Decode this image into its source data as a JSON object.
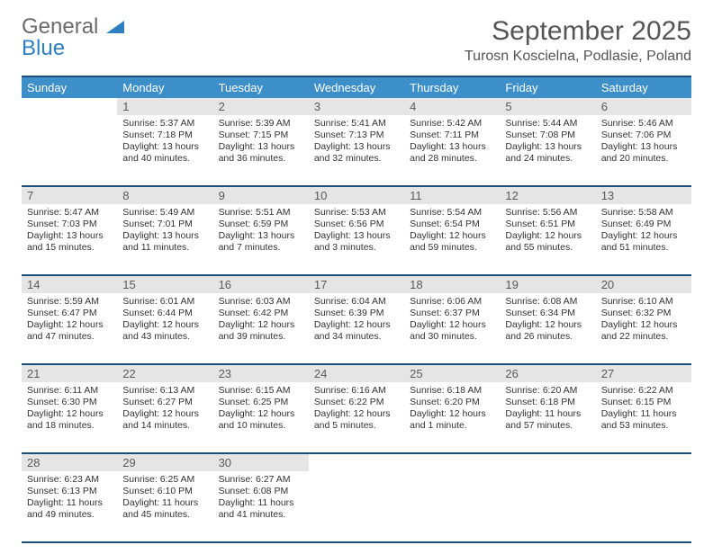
{
  "brand": {
    "part1": "General",
    "part2": "Blue"
  },
  "title": "September 2025",
  "location": "Turosn Koscielna, Podlasie, Poland",
  "colors": {
    "header_bar": "#3d8fc9",
    "rule": "#1b4f7a",
    "daynum_bg": "#e5e5e5",
    "text": "#333333",
    "brand_gray": "#6b6b6b",
    "brand_blue": "#2f7fc3"
  },
  "day_labels": [
    "Sunday",
    "Monday",
    "Tuesday",
    "Wednesday",
    "Thursday",
    "Friday",
    "Saturday"
  ],
  "weeks": [
    {
      "nums": [
        "",
        "1",
        "2",
        "3",
        "4",
        "5",
        "6"
      ],
      "cells": [
        {
          "sunrise": "",
          "sunset": "",
          "daylight": ""
        },
        {
          "sunrise": "Sunrise: 5:37 AM",
          "sunset": "Sunset: 7:18 PM",
          "daylight": "Daylight: 13 hours and 40 minutes."
        },
        {
          "sunrise": "Sunrise: 5:39 AM",
          "sunset": "Sunset: 7:15 PM",
          "daylight": "Daylight: 13 hours and 36 minutes."
        },
        {
          "sunrise": "Sunrise: 5:41 AM",
          "sunset": "Sunset: 7:13 PM",
          "daylight": "Daylight: 13 hours and 32 minutes."
        },
        {
          "sunrise": "Sunrise: 5:42 AM",
          "sunset": "Sunset: 7:11 PM",
          "daylight": "Daylight: 13 hours and 28 minutes."
        },
        {
          "sunrise": "Sunrise: 5:44 AM",
          "sunset": "Sunset: 7:08 PM",
          "daylight": "Daylight: 13 hours and 24 minutes."
        },
        {
          "sunrise": "Sunrise: 5:46 AM",
          "sunset": "Sunset: 7:06 PM",
          "daylight": "Daylight: 13 hours and 20 minutes."
        }
      ]
    },
    {
      "nums": [
        "7",
        "8",
        "9",
        "10",
        "11",
        "12",
        "13"
      ],
      "cells": [
        {
          "sunrise": "Sunrise: 5:47 AM",
          "sunset": "Sunset: 7:03 PM",
          "daylight": "Daylight: 13 hours and 15 minutes."
        },
        {
          "sunrise": "Sunrise: 5:49 AM",
          "sunset": "Sunset: 7:01 PM",
          "daylight": "Daylight: 13 hours and 11 minutes."
        },
        {
          "sunrise": "Sunrise: 5:51 AM",
          "sunset": "Sunset: 6:59 PM",
          "daylight": "Daylight: 13 hours and 7 minutes."
        },
        {
          "sunrise": "Sunrise: 5:53 AM",
          "sunset": "Sunset: 6:56 PM",
          "daylight": "Daylight: 13 hours and 3 minutes."
        },
        {
          "sunrise": "Sunrise: 5:54 AM",
          "sunset": "Sunset: 6:54 PM",
          "daylight": "Daylight: 12 hours and 59 minutes."
        },
        {
          "sunrise": "Sunrise: 5:56 AM",
          "sunset": "Sunset: 6:51 PM",
          "daylight": "Daylight: 12 hours and 55 minutes."
        },
        {
          "sunrise": "Sunrise: 5:58 AM",
          "sunset": "Sunset: 6:49 PM",
          "daylight": "Daylight: 12 hours and 51 minutes."
        }
      ]
    },
    {
      "nums": [
        "14",
        "15",
        "16",
        "17",
        "18",
        "19",
        "20"
      ],
      "cells": [
        {
          "sunrise": "Sunrise: 5:59 AM",
          "sunset": "Sunset: 6:47 PM",
          "daylight": "Daylight: 12 hours and 47 minutes."
        },
        {
          "sunrise": "Sunrise: 6:01 AM",
          "sunset": "Sunset: 6:44 PM",
          "daylight": "Daylight: 12 hours and 43 minutes."
        },
        {
          "sunrise": "Sunrise: 6:03 AM",
          "sunset": "Sunset: 6:42 PM",
          "daylight": "Daylight: 12 hours and 39 minutes."
        },
        {
          "sunrise": "Sunrise: 6:04 AM",
          "sunset": "Sunset: 6:39 PM",
          "daylight": "Daylight: 12 hours and 34 minutes."
        },
        {
          "sunrise": "Sunrise: 6:06 AM",
          "sunset": "Sunset: 6:37 PM",
          "daylight": "Daylight: 12 hours and 30 minutes."
        },
        {
          "sunrise": "Sunrise: 6:08 AM",
          "sunset": "Sunset: 6:34 PM",
          "daylight": "Daylight: 12 hours and 26 minutes."
        },
        {
          "sunrise": "Sunrise: 6:10 AM",
          "sunset": "Sunset: 6:32 PM",
          "daylight": "Daylight: 12 hours and 22 minutes."
        }
      ]
    },
    {
      "nums": [
        "21",
        "22",
        "23",
        "24",
        "25",
        "26",
        "27"
      ],
      "cells": [
        {
          "sunrise": "Sunrise: 6:11 AM",
          "sunset": "Sunset: 6:30 PM",
          "daylight": "Daylight: 12 hours and 18 minutes."
        },
        {
          "sunrise": "Sunrise: 6:13 AM",
          "sunset": "Sunset: 6:27 PM",
          "daylight": "Daylight: 12 hours and 14 minutes."
        },
        {
          "sunrise": "Sunrise: 6:15 AM",
          "sunset": "Sunset: 6:25 PM",
          "daylight": "Daylight: 12 hours and 10 minutes."
        },
        {
          "sunrise": "Sunrise: 6:16 AM",
          "sunset": "Sunset: 6:22 PM",
          "daylight": "Daylight: 12 hours and 5 minutes."
        },
        {
          "sunrise": "Sunrise: 6:18 AM",
          "sunset": "Sunset: 6:20 PM",
          "daylight": "Daylight: 12 hours and 1 minute."
        },
        {
          "sunrise": "Sunrise: 6:20 AM",
          "sunset": "Sunset: 6:18 PM",
          "daylight": "Daylight: 11 hours and 57 minutes."
        },
        {
          "sunrise": "Sunrise: 6:22 AM",
          "sunset": "Sunset: 6:15 PM",
          "daylight": "Daylight: 11 hours and 53 minutes."
        }
      ]
    },
    {
      "nums": [
        "28",
        "29",
        "30",
        "",
        "",
        "",
        ""
      ],
      "cells": [
        {
          "sunrise": "Sunrise: 6:23 AM",
          "sunset": "Sunset: 6:13 PM",
          "daylight": "Daylight: 11 hours and 49 minutes."
        },
        {
          "sunrise": "Sunrise: 6:25 AM",
          "sunset": "Sunset: 6:10 PM",
          "daylight": "Daylight: 11 hours and 45 minutes."
        },
        {
          "sunrise": "Sunrise: 6:27 AM",
          "sunset": "Sunset: 6:08 PM",
          "daylight": "Daylight: 11 hours and 41 minutes."
        },
        {
          "sunrise": "",
          "sunset": "",
          "daylight": ""
        },
        {
          "sunrise": "",
          "sunset": "",
          "daylight": ""
        },
        {
          "sunrise": "",
          "sunset": "",
          "daylight": ""
        },
        {
          "sunrise": "",
          "sunset": "",
          "daylight": ""
        }
      ]
    }
  ]
}
